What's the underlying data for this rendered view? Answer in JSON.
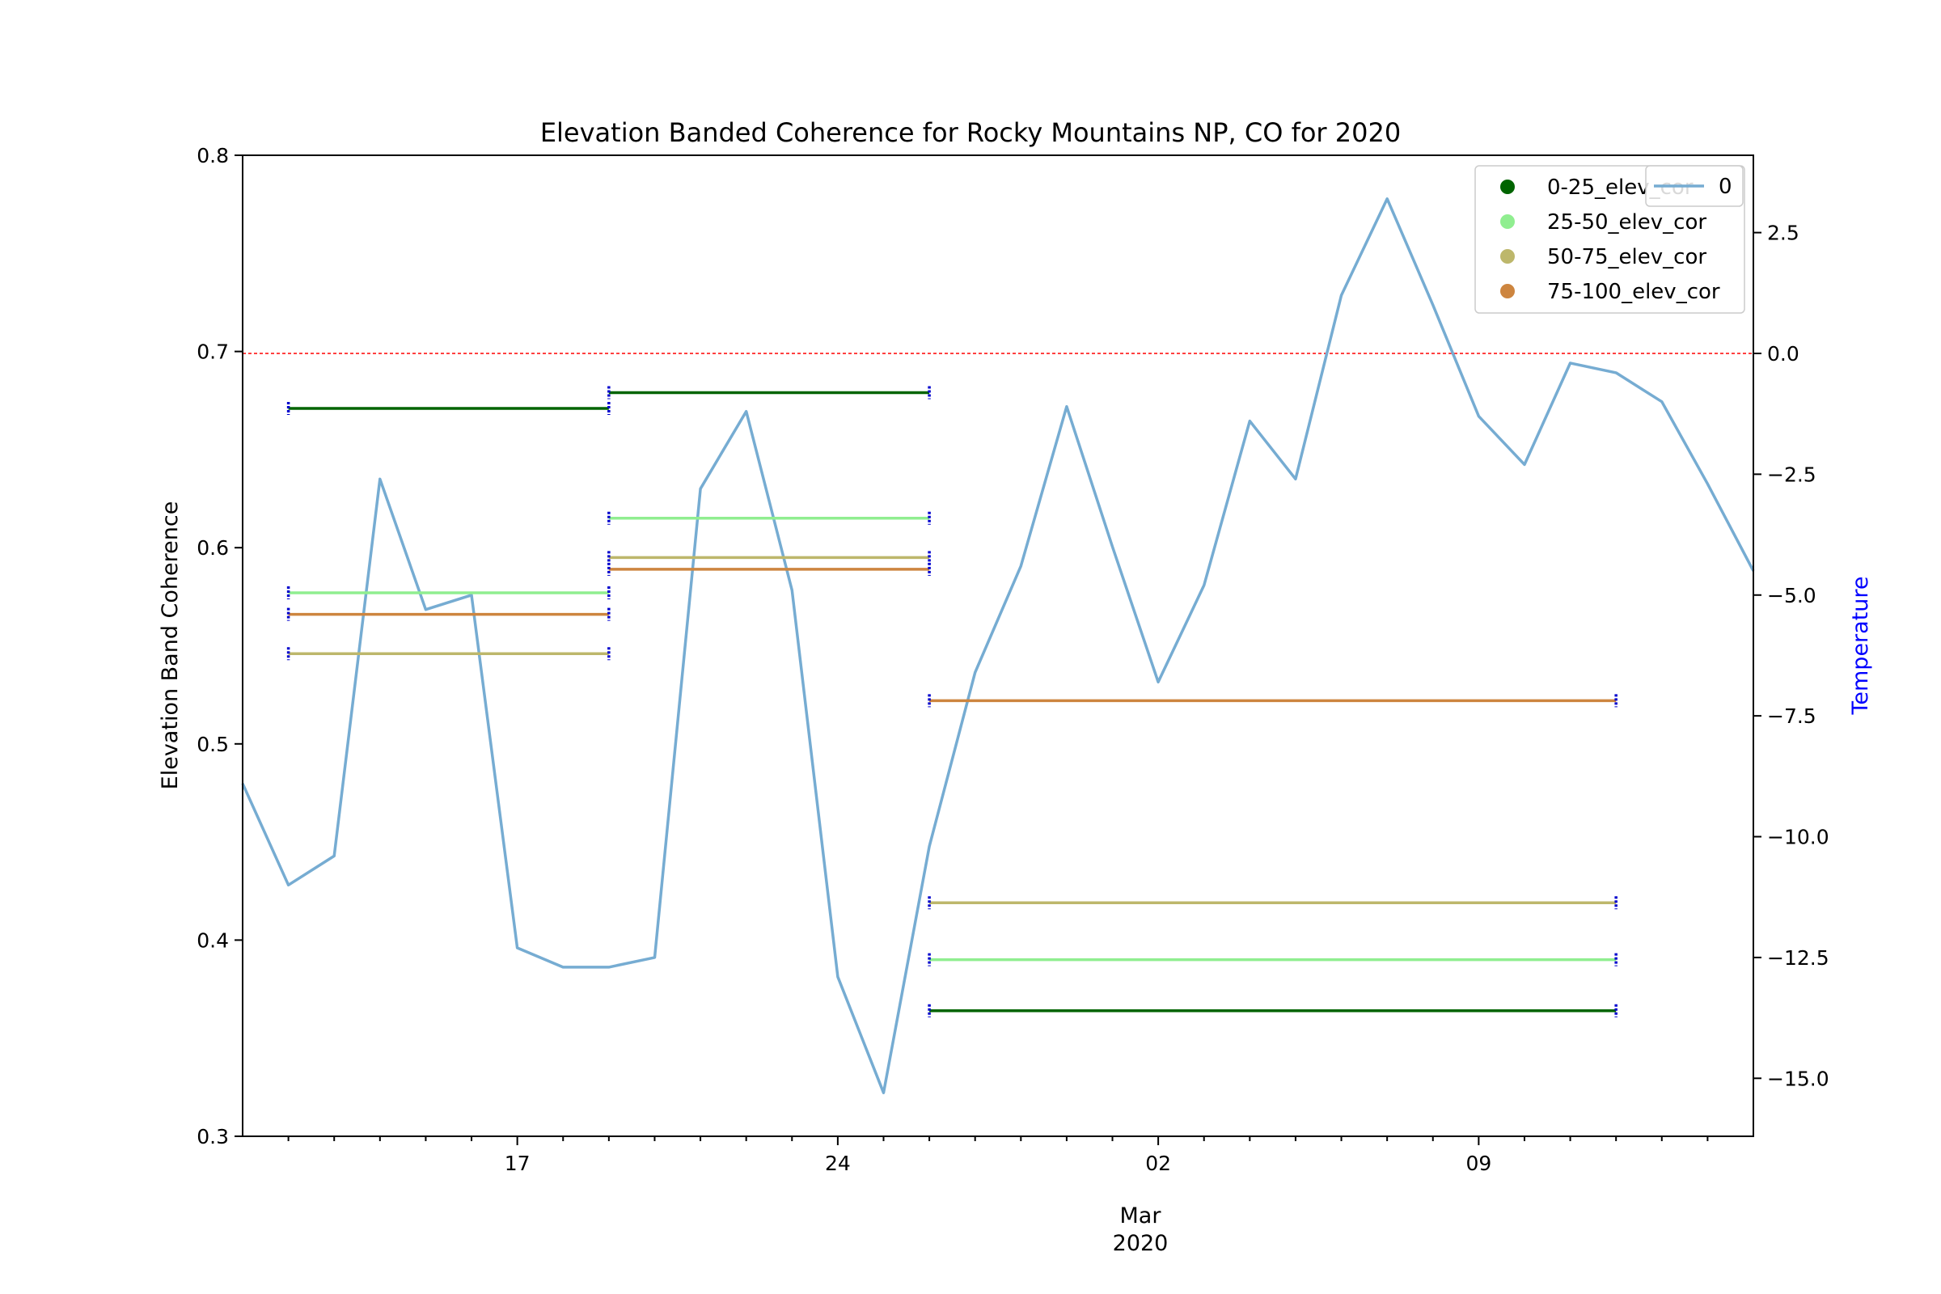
{
  "chart_data": {
    "type": "line",
    "title": "Elevation Banded Coherence for Rocky Mountains NP, CO for 2020",
    "ylabel": "Elevation Band Coherence",
    "y2label": "Temperature",
    "xlabel_month": "Mar",
    "xlabel_year": "2020",
    "ylim": [
      0.3,
      0.8
    ],
    "y2lim": [
      -16.2,
      4.1
    ],
    "xlim": [
      "2020-02-11",
      "2020-03-15"
    ],
    "yticks": [
      0.3,
      0.4,
      0.5,
      0.6,
      0.7,
      0.8
    ],
    "ytick_labels": [
      "0.3",
      "0.4",
      "0.5",
      "0.6",
      "0.7",
      "0.8"
    ],
    "y2ticks": [
      2.5,
      0.0,
      -2.5,
      -5.0,
      -7.5,
      -10.0,
      -12.5,
      -15.0
    ],
    "y2tick_labels": [
      "2.5",
      "0.0",
      "−2.5",
      "−5.0",
      "−7.5",
      "−10.0",
      "−12.5",
      "−15.0"
    ],
    "xticks_major": [
      "2020-02-17",
      "2020-02-24",
      "2020-03-02",
      "2020-03-09"
    ],
    "xtick_labels": [
      "17",
      "24",
      "02",
      "09"
    ],
    "xticks_minor": [
      "2020-02-12",
      "2020-02-13",
      "2020-02-14",
      "2020-02-15",
      "2020-02-16",
      "2020-02-18",
      "2020-02-19",
      "2020-02-20",
      "2020-02-21",
      "2020-02-22",
      "2020-02-23",
      "2020-02-25",
      "2020-02-26",
      "2020-02-27",
      "2020-02-28",
      "2020-02-29",
      "2020-03-01",
      "2020-03-03",
      "2020-03-04",
      "2020-03-05",
      "2020-03-06",
      "2020-03-07",
      "2020-03-08",
      "2020-03-10",
      "2020-03-11",
      "2020-03-12",
      "2020-03-13",
      "2020-03-14"
    ],
    "reference_line": {
      "axis": "y2",
      "value": 0.0,
      "color": "#ff0000"
    },
    "temperature": {
      "name": "0",
      "color": "#76acd2",
      "dates": [
        "2020-02-11",
        "2020-02-12",
        "2020-02-13",
        "2020-02-14",
        "2020-02-15",
        "2020-02-16",
        "2020-02-17",
        "2020-02-18",
        "2020-02-19",
        "2020-02-20",
        "2020-02-21",
        "2020-02-22",
        "2020-02-23",
        "2020-02-24",
        "2020-02-25",
        "2020-02-26",
        "2020-02-27",
        "2020-02-28",
        "2020-02-29",
        "2020-03-01",
        "2020-03-02",
        "2020-03-03",
        "2020-03-04",
        "2020-03-05",
        "2020-03-06",
        "2020-03-07",
        "2020-03-08",
        "2020-03-09",
        "2020-03-10",
        "2020-03-11",
        "2020-03-12",
        "2020-03-13",
        "2020-03-14",
        "2020-03-15"
      ],
      "values": [
        -8.9,
        -11.0,
        -10.4,
        -2.6,
        -5.3,
        -5.0,
        -12.3,
        -12.7,
        -12.7,
        -12.5,
        -2.8,
        -1.2,
        -4.9,
        -12.9,
        -15.3,
        -10.2,
        -6.6,
        -4.4,
        -1.1,
        -4.0,
        -6.8,
        -4.8,
        -1.4,
        -2.6,
        1.2,
        3.2,
        1.0,
        -1.3,
        -2.3,
        -0.2,
        -0.4,
        -1.0,
        -2.7,
        -4.5
      ]
    },
    "bands": [
      {
        "name": "0-25_elev_cor",
        "color": "#006400",
        "segments": [
          {
            "start": "2020-02-12",
            "end": "2020-02-19",
            "value": 0.671
          },
          {
            "start": "2020-02-19",
            "end": "2020-02-26",
            "value": 0.679
          },
          {
            "start": "2020-02-26",
            "end": "2020-03-12",
            "value": 0.364
          }
        ]
      },
      {
        "name": "25-50_elev_cor",
        "color": "#90ee90",
        "segments": [
          {
            "start": "2020-02-12",
            "end": "2020-02-19",
            "value": 0.577
          },
          {
            "start": "2020-02-19",
            "end": "2020-02-26",
            "value": 0.615
          },
          {
            "start": "2020-02-26",
            "end": "2020-03-12",
            "value": 0.39
          }
        ]
      },
      {
        "name": "50-75_elev_cor",
        "color": "#bdb76b",
        "segments": [
          {
            "start": "2020-02-12",
            "end": "2020-02-19",
            "value": 0.546
          },
          {
            "start": "2020-02-19",
            "end": "2020-02-26",
            "value": 0.595
          },
          {
            "start": "2020-02-26",
            "end": "2020-03-12",
            "value": 0.419
          }
        ]
      },
      {
        "name": "75-100_elev_cor",
        "color": "#cd853f",
        "segments": [
          {
            "start": "2020-02-12",
            "end": "2020-02-19",
            "value": 0.566
          },
          {
            "start": "2020-02-19",
            "end": "2020-02-26",
            "value": 0.589
          },
          {
            "start": "2020-02-26",
            "end": "2020-03-12",
            "value": 0.522
          }
        ]
      }
    ],
    "segment_end_marker_color": "#0000cd",
    "legend": {
      "placement": "top-right"
    }
  }
}
